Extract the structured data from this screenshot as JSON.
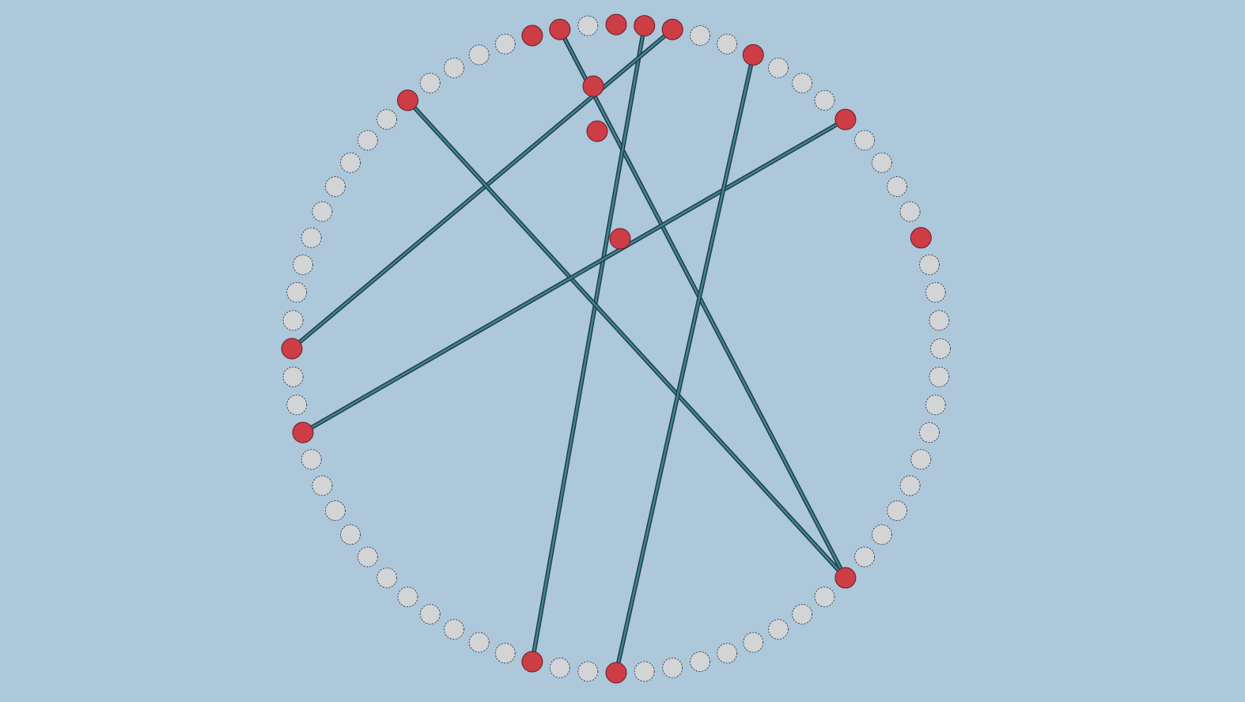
{
  "game": {
    "type": "circular-node-link-puzzle",
    "ring_slot_count": 72,
    "ring_start_angle_deg": -90,
    "ring_clockwise": true,
    "occupied_slots": [
      0,
      1,
      2,
      5,
      9,
      14,
      27,
      36,
      39,
      51,
      54,
      64,
      69,
      70
    ],
    "interior_nodes": [
      "inner-a",
      "inner-b",
      "inner-c"
    ],
    "links": [
      {
        "from": 70,
        "to": 27
      },
      {
        "from": 1,
        "to": 39
      },
      {
        "from": 2,
        "to": 54
      },
      {
        "from": 64,
        "to": 27
      },
      {
        "from": 9,
        "to": 51
      },
      {
        "from": 36,
        "to": 5
      }
    ],
    "colors": {
      "background": "#adc7db",
      "empty_slot": "#d2d4d6",
      "node": "#cc3d45",
      "link": "#3f8290",
      "link_outline": "#1f3c45"
    }
  }
}
